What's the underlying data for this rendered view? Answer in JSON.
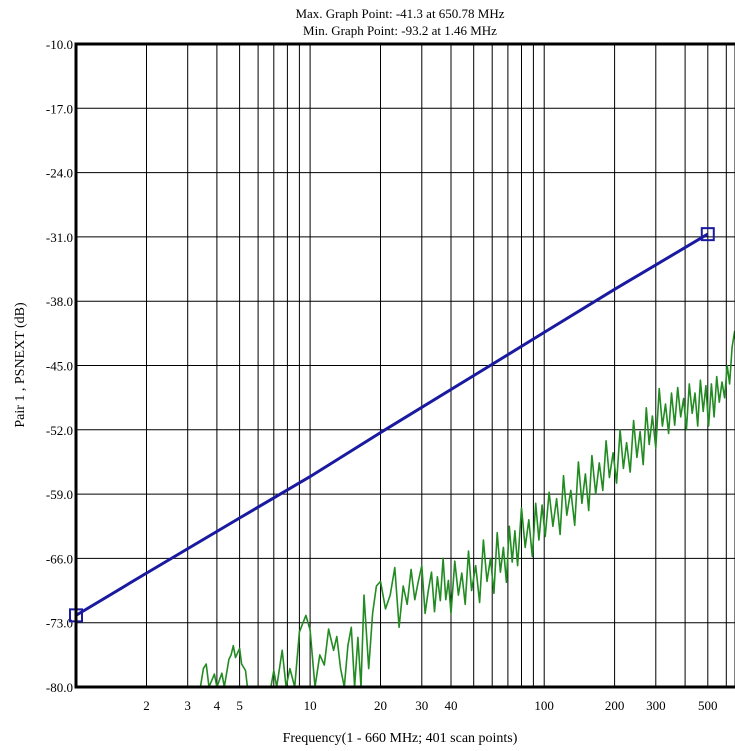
{
  "chart_data": {
    "type": "line",
    "title": [
      "Max. Graph Point: -41.3 at 650.78 MHz",
      "Min. Graph Point: -93.2 at 1.46 MHz"
    ],
    "xlabel": "Frequency(1 - 660 MHz; 401 scan points)",
    "ylabel": "Pair 1 , PSNEXT (dB)",
    "x_scale": "log",
    "xlim": [
      1,
      660
    ],
    "ylim": [
      -80,
      -10
    ],
    "grid": true,
    "y_ticks": [
      -10,
      -17,
      -24,
      -31,
      -38,
      -45,
      -52,
      -59,
      -66,
      -73,
      -80
    ],
    "y_tick_labels": [
      "-10.0",
      "-17.0",
      "-24.0",
      "-31.0",
      "-38.0",
      "-45.0",
      "-52.0",
      "-59.0",
      "-66.0",
      "-73.0",
      "-80.0"
    ],
    "x_tick_labels": [
      {
        "value": 2,
        "label": "2"
      },
      {
        "value": 3,
        "label": "3"
      },
      {
        "value": 4,
        "label": "4"
      },
      {
        "value": 5,
        "label": "5"
      },
      {
        "value": 10,
        "label": "10"
      },
      {
        "value": 20,
        "label": "20"
      },
      {
        "value": 30,
        "label": "30"
      },
      {
        "value": 40,
        "label": "40"
      },
      {
        "value": 100,
        "label": "100"
      },
      {
        "value": 200,
        "label": "200"
      },
      {
        "value": 300,
        "label": "300"
      },
      {
        "value": 500,
        "label": "500"
      }
    ],
    "x_grid": [
      2,
      3,
      4,
      5,
      6,
      7,
      8,
      9,
      10,
      20,
      30,
      40,
      50,
      60,
      70,
      80,
      90,
      100,
      200,
      300,
      400,
      500,
      600
    ],
    "limit_line": {
      "color": "#1a1aa0",
      "points": [
        [
          1,
          -72.2
        ],
        [
          2,
          -67.6
        ],
        [
          5,
          -61.6
        ],
        [
          10,
          -57.1
        ],
        [
          20,
          -52.3
        ],
        [
          50,
          -46.1
        ],
        [
          100,
          -41.4
        ],
        [
          200,
          -36.7
        ],
        [
          500,
          -30.7
        ]
      ],
      "markers": [
        [
          1,
          -72.2
        ],
        [
          500,
          -30.7
        ]
      ]
    },
    "measurement": {
      "color": "#228b22",
      "points": [
        [
          1.0,
          -80.0
        ],
        [
          2.0,
          -80.0
        ],
        [
          3.4,
          -80.0
        ],
        [
          3.5,
          -78.0
        ],
        [
          3.6,
          -77.5
        ],
        [
          3.7,
          -80.0
        ],
        [
          3.9,
          -78.6
        ],
        [
          4.0,
          -80.0
        ],
        [
          4.2,
          -78.5
        ],
        [
          4.3,
          -80.0
        ],
        [
          4.5,
          -77.0
        ],
        [
          4.6,
          -76.5
        ],
        [
          4.7,
          -75.5
        ],
        [
          4.8,
          -76.8
        ],
        [
          5.0,
          -75.8
        ],
        [
          5.1,
          -77.5
        ],
        [
          5.3,
          -78.2
        ],
        [
          5.4,
          -80.0
        ],
        [
          5.6,
          -80.0
        ],
        [
          6.8,
          -80.0
        ],
        [
          7.0,
          -78.2
        ],
        [
          7.2,
          -80.0
        ],
        [
          7.6,
          -76.0
        ],
        [
          7.9,
          -80.0
        ],
        [
          8.2,
          -78.0
        ],
        [
          8.6,
          -80.0
        ],
        [
          9.0,
          -74.0
        ],
        [
          9.6,
          -72.2
        ],
        [
          10.0,
          -73.8
        ],
        [
          10.5,
          -80.0
        ],
        [
          11.0,
          -76.5
        ],
        [
          11.5,
          -77.6
        ],
        [
          12.0,
          -73.7
        ],
        [
          12.6,
          -76.0
        ],
        [
          13.0,
          -74.5
        ],
        [
          13.5,
          -78.0
        ],
        [
          14.0,
          -80.0
        ],
        [
          14.5,
          -75.5
        ],
        [
          15.0,
          -73.5
        ],
        [
          15.5,
          -80.0
        ],
        [
          16.0,
          -74.6
        ],
        [
          16.5,
          -80.0
        ],
        [
          17.0,
          -70.0
        ],
        [
          17.8,
          -78.0
        ],
        [
          18.5,
          -72.0
        ],
        [
          19.2,
          -69.0
        ],
        [
          20.0,
          -68.5
        ],
        [
          21.0,
          -71.5
        ],
        [
          22.0,
          -70.0
        ],
        [
          23.0,
          -67.0
        ],
        [
          24.0,
          -73.5
        ],
        [
          25.0,
          -69.0
        ],
        [
          26.0,
          -71.0
        ],
        [
          27.0,
          -67.2
        ],
        [
          28.0,
          -70.5
        ],
        [
          29.0,
          -68.5
        ],
        [
          30.0,
          -66.8
        ],
        [
          31.0,
          -72.0
        ],
        [
          32.0,
          -69.5
        ],
        [
          33.0,
          -67.5
        ],
        [
          34.0,
          -71.8
        ],
        [
          35.0,
          -68.0
        ],
        [
          36.0,
          -70.6
        ],
        [
          37.0,
          -66.0
        ],
        [
          38.0,
          -70.5
        ],
        [
          39.0,
          -68.4
        ],
        [
          40.0,
          -72.0
        ],
        [
          41.5,
          -66.3
        ],
        [
          43.0,
          -70.0
        ],
        [
          44.5,
          -67.6
        ],
        [
          46.0,
          -71.0
        ],
        [
          47.5,
          -65.2
        ],
        [
          49.0,
          -69.5
        ],
        [
          51.0,
          -66.8
        ],
        [
          53.0,
          -70.8
        ],
        [
          55.0,
          -64.0
        ],
        [
          57.0,
          -68.5
        ],
        [
          59.0,
          -66.0
        ],
        [
          61.0,
          -69.8
        ],
        [
          63.0,
          -63.2
        ],
        [
          65.0,
          -67.5
        ],
        [
          67.0,
          -64.8
        ],
        [
          69.0,
          -68.6
        ],
        [
          71.0,
          -62.5
        ],
        [
          73.0,
          -66.4
        ],
        [
          75.0,
          -63.0
        ],
        [
          77.0,
          -66.8
        ],
        [
          80.0,
          -60.5
        ],
        [
          83.0,
          -64.8
        ],
        [
          86.0,
          -61.8
        ],
        [
          89.0,
          -65.8
        ],
        [
          92.0,
          -60.0
        ],
        [
          95.0,
          -64.0
        ],
        [
          98.0,
          -60.2
        ],
        [
          101.0,
          -63.6
        ],
        [
          105.0,
          -58.8
        ],
        [
          109.0,
          -62.5
        ],
        [
          113.0,
          -59.5
        ],
        [
          117.0,
          -63.4
        ],
        [
          121.0,
          -57.0
        ],
        [
          125.0,
          -61.3
        ],
        [
          130.0,
          -58.6
        ],
        [
          135.0,
          -62.4
        ],
        [
          140.0,
          -55.5
        ],
        [
          145.0,
          -60.0
        ],
        [
          150.0,
          -56.8
        ],
        [
          155.0,
          -60.8
        ],
        [
          160.0,
          -54.8
        ],
        [
          166.0,
          -59.0
        ],
        [
          172.0,
          -55.6
        ],
        [
          178.0,
          -58.6
        ],
        [
          184.0,
          -53.2
        ],
        [
          190.0,
          -57.2
        ],
        [
          197.0,
          -54.5
        ],
        [
          204.0,
          -57.8
        ],
        [
          211.0,
          -52.0
        ],
        [
          218.0,
          -56.2
        ],
        [
          225.0,
          -53.4
        ],
        [
          233.0,
          -56.6
        ],
        [
          241.0,
          -51.0
        ],
        [
          249.0,
          -55.0
        ],
        [
          257.0,
          -52.2
        ],
        [
          265.0,
          -55.8
        ],
        [
          273.0,
          -49.6
        ],
        [
          281.0,
          -53.6
        ],
        [
          290.0,
          -50.5
        ],
        [
          300.0,
          -54.0
        ],
        [
          310.0,
          -47.5
        ],
        [
          320.0,
          -51.6
        ],
        [
          330.0,
          -49.2
        ],
        [
          340.0,
          -52.4
        ],
        [
          350.0,
          -48.0
        ],
        [
          361.0,
          -51.5
        ],
        [
          372.0,
          -47.4
        ],
        [
          383.0,
          -50.6
        ],
        [
          394.0,
          -48.6
        ],
        [
          405.0,
          -52.0
        ],
        [
          417.0,
          -47.0
        ],
        [
          429.0,
          -50.2
        ],
        [
          441.0,
          -48.0
        ],
        [
          453.0,
          -51.6
        ],
        [
          465.0,
          -46.6
        ],
        [
          478.0,
          -50.0
        ],
        [
          491.0,
          -47.2
        ],
        [
          504.0,
          -51.6
        ],
        [
          518.0,
          -47.0
        ],
        [
          532.0,
          -50.6
        ],
        [
          546.0,
          -46.2
        ],
        [
          560.0,
          -49.0
        ],
        [
          575.0,
          -46.8
        ],
        [
          590.0,
          -48.5
        ],
        [
          605.0,
          -45.0
        ],
        [
          620.0,
          -47.0
        ],
        [
          635.0,
          -43.0
        ],
        [
          650.78,
          -41.3
        ],
        [
          660.0,
          -43.2
        ]
      ]
    }
  }
}
